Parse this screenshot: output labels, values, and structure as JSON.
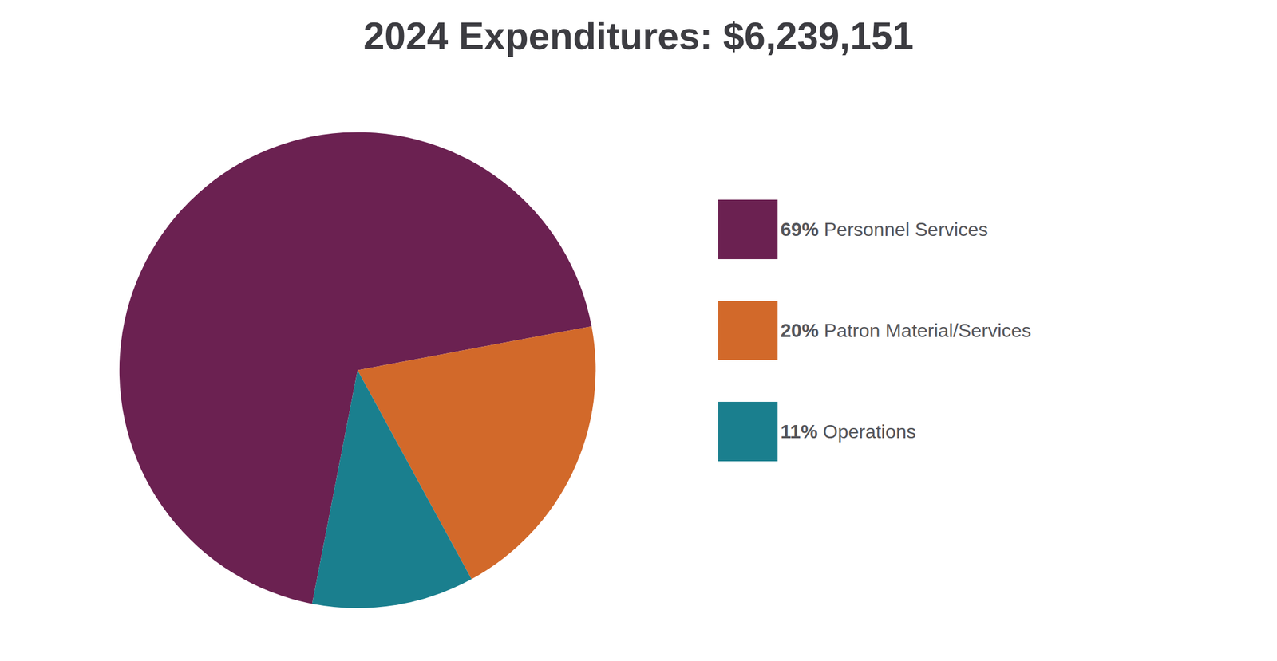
{
  "chart_data": {
    "type": "pie",
    "title": "2024 Expenditures: $6,239,151",
    "categories": [
      "Personnel Services",
      "Patron Material/Services",
      "Operations"
    ],
    "values": [
      69,
      20,
      11
    ],
    "value_labels": [
      "69%",
      "20%",
      "11%"
    ],
    "colors": [
      "#6B2151",
      "#D2692A",
      "#1A7F8E"
    ],
    "legend": "right"
  }
}
